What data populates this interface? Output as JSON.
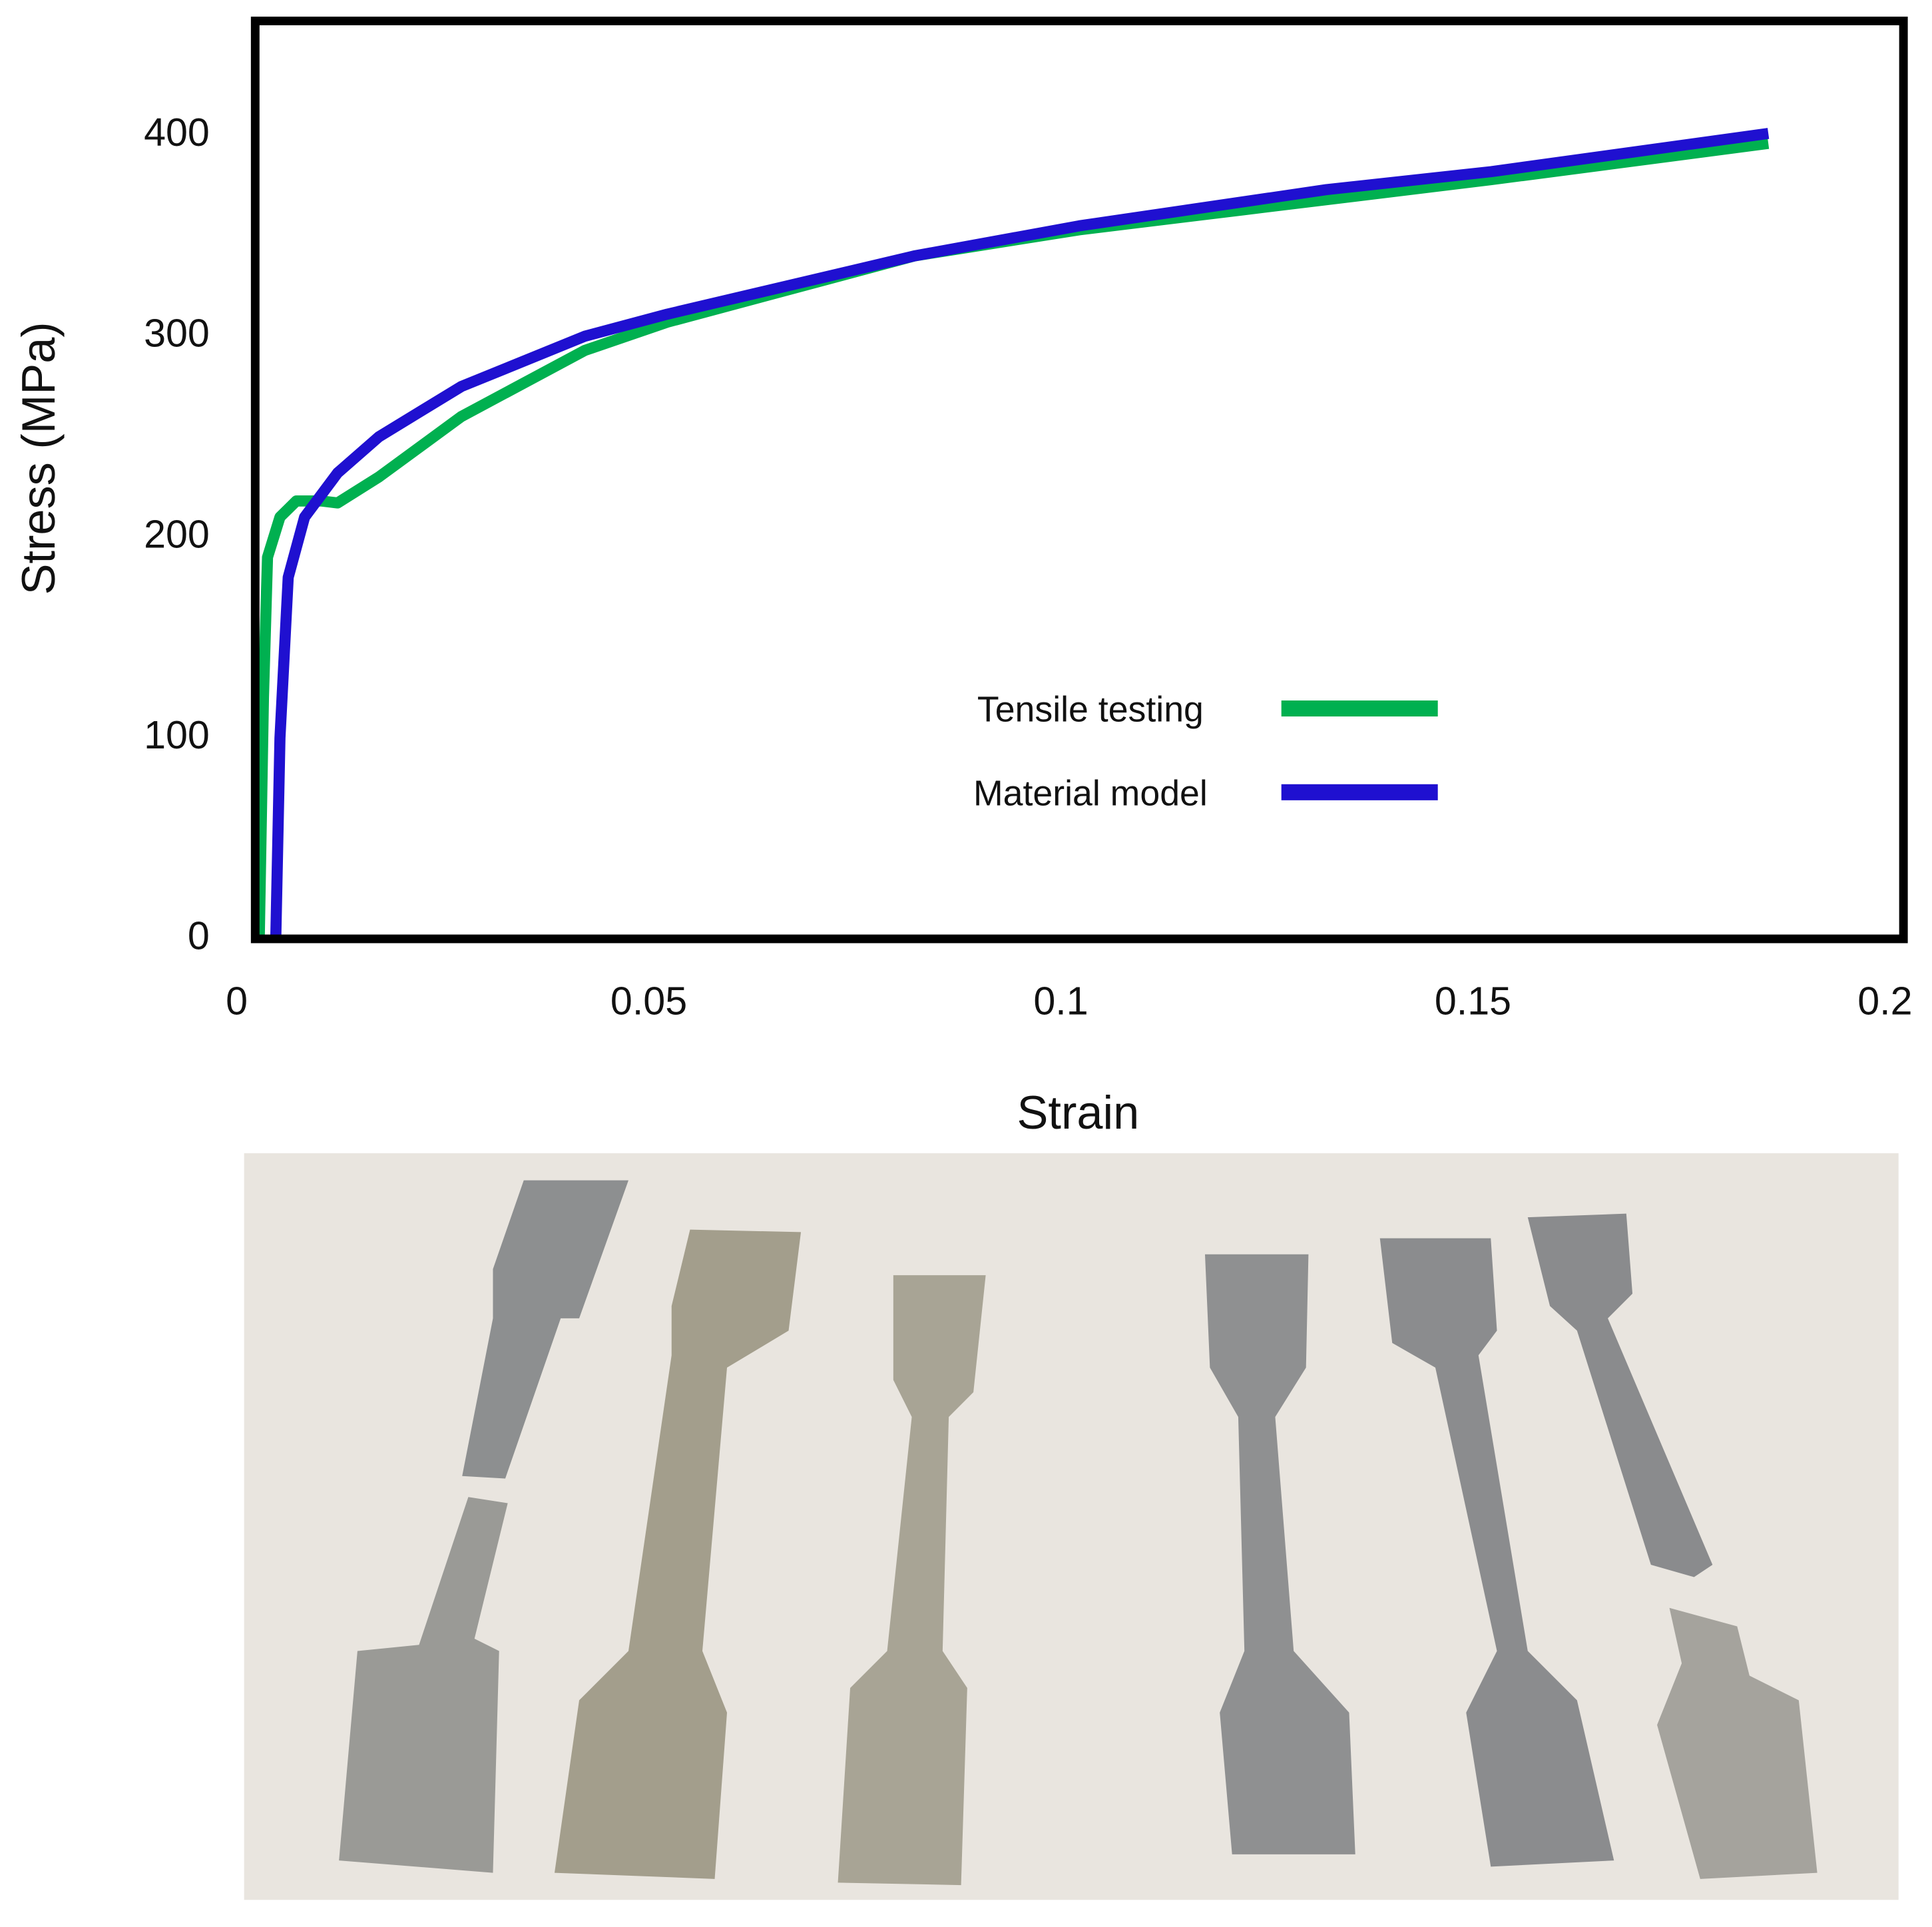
{
  "chart_data": {
    "type": "line",
    "xlabel": "Strain",
    "ylabel": "Stress (MPa)",
    "xlim": [
      0,
      0.2
    ],
    "xticks": [
      0,
      0.05,
      0.1,
      0.15,
      0.2
    ],
    "ylim": [
      0,
      457
    ],
    "yticks": [
      0,
      100,
      200,
      300,
      400
    ],
    "grid": false,
    "series": [
      {
        "name": "Tensile testing",
        "color": "#00b050",
        "x": [
          0.0005,
          0.001,
          0.0015,
          0.003,
          0.005,
          0.008,
          0.01,
          0.015,
          0.025,
          0.04,
          0.05,
          0.08,
          0.1,
          0.12,
          0.15,
          0.1836
        ],
        "values": [
          0,
          120,
          190,
          210,
          218,
          218,
          217,
          230,
          260,
          293,
          307,
          340,
          353,
          363,
          378,
          396
        ]
      },
      {
        "name": "Material model",
        "color": "#1f10d0",
        "x": [
          0.0025,
          0.003,
          0.004,
          0.006,
          0.01,
          0.015,
          0.025,
          0.04,
          0.05,
          0.08,
          0.1,
          0.13,
          0.15,
          0.1836
        ],
        "values": [
          0,
          100,
          180,
          210,
          232,
          250,
          275,
          300,
          311,
          340,
          355,
          373,
          382,
          401
        ]
      }
    ]
  }
}
